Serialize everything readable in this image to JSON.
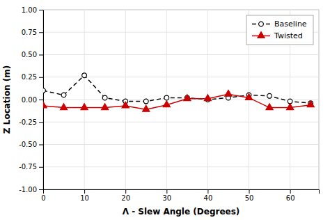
{
  "chart_data": {
    "type": "line",
    "xlabel": "Λ - Slew Angle (Degrees)",
    "ylabel": "Z Location (m)",
    "x": [
      0,
      5,
      10,
      15,
      20,
      25,
      30,
      35,
      40,
      45,
      50,
      55,
      60,
      65
    ],
    "series": [
      {
        "name": "Baseline",
        "color": "#000000",
        "marker": "circle",
        "line_style": "dashed",
        "values": [
          0.1,
          0.05,
          0.27,
          0.02,
          -0.02,
          -0.02,
          0.02,
          0.02,
          0.0,
          0.02,
          0.05,
          0.04,
          -0.02,
          -0.04
        ]
      },
      {
        "name": "Twisted",
        "color": "#cc0000",
        "marker": "triangle",
        "line_style": "solid",
        "values": [
          -0.07,
          -0.09,
          -0.09,
          -0.09,
          -0.07,
          -0.11,
          -0.06,
          0.01,
          0.01,
          0.06,
          0.02,
          -0.09,
          -0.09,
          -0.06
        ]
      }
    ],
    "xlim": [
      0,
      67
    ],
    "ylim": [
      -1.0,
      1.0
    ],
    "xticks": [
      0,
      10,
      20,
      30,
      40,
      50,
      60
    ],
    "yticks": [
      {
        "value": -1.0,
        "label": "-1.00"
      },
      -0.75,
      {
        "value": -0.5,
        "label": "-0.50"
      },
      -0.25,
      {
        "value": 0.0,
        "label": "0.00"
      },
      0.25,
      {
        "value": 0.5,
        "label": "0.50"
      },
      0.75,
      {
        "value": 1.0,
        "label": "1.00"
      }
    ],
    "grid": true,
    "legend": "upper right"
  }
}
